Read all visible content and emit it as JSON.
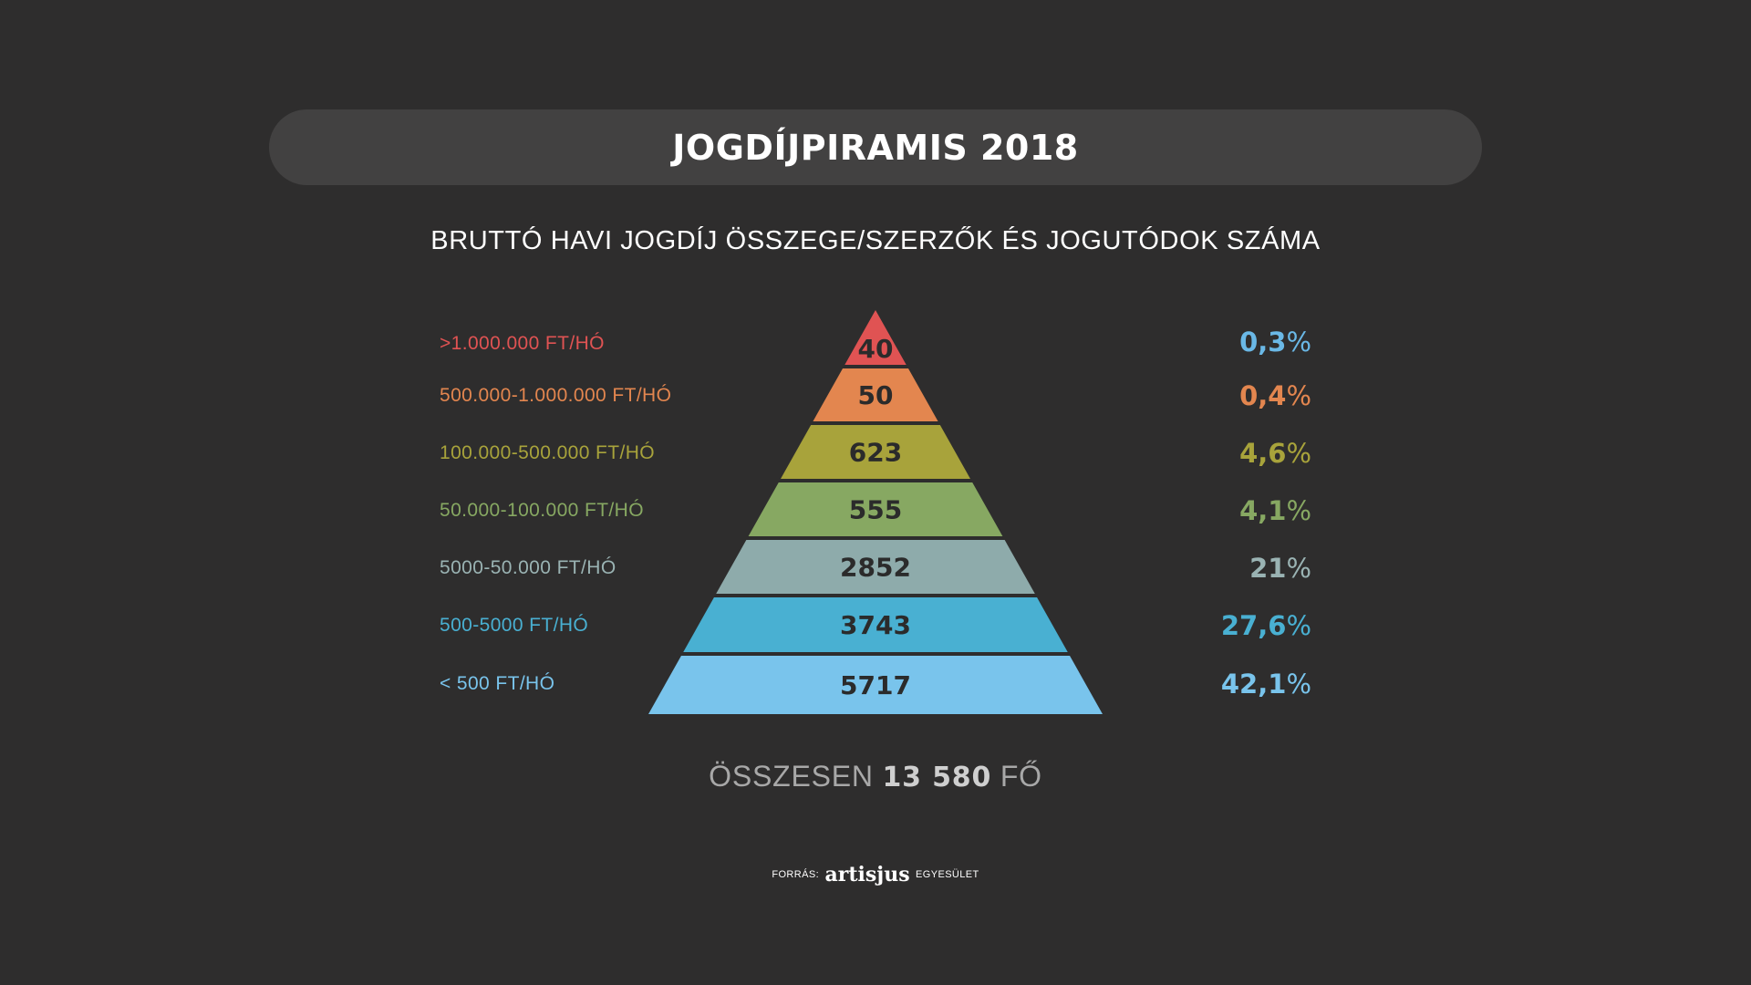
{
  "title": "JOGDÍJPIRAMIS 2018",
  "subtitle": "BRUTTÓ HAVI JOGDÍJ ÖSSZEGE/SZERZŐK ÉS JOGUTÓDOK SZÁMA",
  "chart_data": {
    "type": "pyramid",
    "tiers": [
      {
        "label": ">1.000.000 FT/HÓ",
        "count": 40,
        "count_label": "40",
        "percent": "0,3",
        "color": "#e05353"
      },
      {
        "label": "500.000-1.000.000 FT/HÓ",
        "count": 50,
        "count_label": "50",
        "percent": "0,4",
        "color": "#e3864f"
      },
      {
        "label": "100.000-500.000 FT/HÓ",
        "count": 623,
        "count_label": "623",
        "percent": "4,6",
        "color": "#a8a33b"
      },
      {
        "label": "50.000-100.000 FT/HÓ",
        "count": 555,
        "count_label": "555",
        "percent": "4,1",
        "color": "#87a862"
      },
      {
        "label": "5000-50.000 FT/HÓ",
        "count": 2852,
        "count_label": "2852",
        "percent": "21",
        "color": "#8eabab"
      },
      {
        "label": "500-5000 FT/HÓ",
        "count": 3743,
        "count_label": "3743",
        "percent": "27,6",
        "color": "#49b0d2"
      },
      {
        "label": "< 500 FT/HÓ",
        "count": 5717,
        "count_label": "5717",
        "percent": "42,1",
        "color": "#79c4ec"
      }
    ],
    "percent_sign": "%",
    "label_colors": [
      "#e05353",
      "#e3864f",
      "#a8a33b",
      "#87a862",
      "#9ab3b3",
      "#49b0d2",
      "#79c4ec"
    ],
    "percent_colors": [
      "#6ab8e6",
      "#e3864f",
      "#a8a33b",
      "#87a862",
      "#9ab3b3",
      "#49b0d2",
      "#79c4ec"
    ]
  },
  "total": {
    "prefix": "ÖSSZESEN",
    "value": "13 580",
    "suffix": "FŐ"
  },
  "source": {
    "prefix": "FORRÁS:",
    "brand": "artisjus",
    "suffix": "EGYESÜLET"
  }
}
